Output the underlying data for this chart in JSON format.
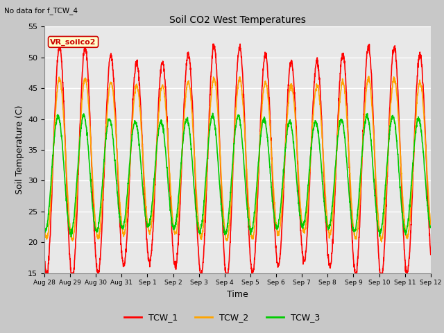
{
  "title": "Soil CO2 West Temperatures",
  "xlabel": "Time",
  "ylabel": "Soil Temperature (C)",
  "note": "No data for f_TCW_4",
  "vr_label": "VR_soilco2",
  "ylim": [
    15,
    55
  ],
  "series": {
    "TCW_1": {
      "color": "#ff0000",
      "linewidth": 1.2
    },
    "TCW_2": {
      "color": "#ffa500",
      "linewidth": 1.2
    },
    "TCW_3": {
      "color": "#00cc00",
      "linewidth": 1.2
    }
  },
  "legend_entries": [
    "TCW_1",
    "TCW_2",
    "TCW_3"
  ],
  "legend_colors": [
    "#ff0000",
    "#ffa500",
    "#00cc00"
  ],
  "fig_bg_color": "#c8c8c8",
  "plot_bg_color": "#e8e8e8",
  "grid_color": "#ffffff",
  "tick_labels": [
    "Aug 28",
    "Aug 29",
    "Aug 30",
    "Aug 31",
    "Sep 1",
    "Sep 2",
    "Sep 3",
    "Sep 4",
    "Sep 5",
    "Sep 6",
    "Sep 7",
    "Sep 8",
    "Sep 9",
    "Sep 10",
    "Sep 11",
    "Sep 12"
  ],
  "yticks": [
    15,
    20,
    25,
    30,
    35,
    40,
    45,
    50,
    55
  ],
  "tcw1_mean": 33.0,
  "tcw1_amp": 17.5,
  "tcw2_mean": 33.5,
  "tcw2_amp": 12.5,
  "tcw3_mean": 31.0,
  "tcw3_amp": 9.0,
  "tcw3_phase_lag": 0.35
}
